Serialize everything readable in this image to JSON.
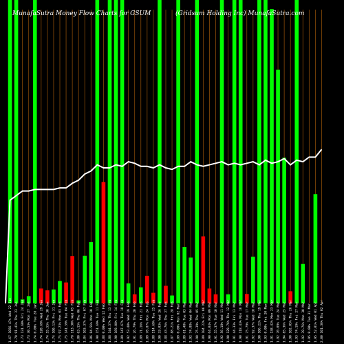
{
  "colors": {
    "background": "#000000",
    "inflow": "#00ff00",
    "outflow": "#ff0000",
    "line": "#ffffff",
    "grid": "#8a4b08",
    "text": "#ffffff"
  },
  "chart_data": {
    "type": "bar",
    "title": "MunafaSutra  Money Flow  Charts for GSUM",
    "subtitle": "(Gridsum Holding Inc) MunafaSutra.com",
    "xlabel": "",
    "ylabel": "",
    "grid": true,
    "categories": [
      "1.67 1056.47% Wed 22 Jan",
      "1.70 91.41% Thu 23 Jan",
      "1.73 131.60% Fri 24 Jan",
      "1.73 30.53% Mon 27 Jan",
      "1.74 0.00% Tue 28 Jan",
      "1.74 120.69% Wed 29 Jan",
      "1.74 55.55% Thu 30 Jan",
      "1.74 100.13% Fri 31 Jan",
      "1.75 97.23% Mon 03 Feb",
      "1.75 141.59% Tue 04 Feb",
      "1.78 113.30% Wed 05 Feb",
      "1.80 63.15% Thu 06 Feb",
      "1.84 103.37% Fri 07 Feb",
      "1.86 84.56% Mon 10 Feb",
      "1.90 151.69% Tue 11 Feb",
      "1.88 0.00% Wed 12 Feb",
      "1.88 144.57% Thu 13 Feb",
      "1.90 169.08% Fri 14 Feb",
      "1.89 147.67% Tue 18 Feb",
      "1.92 53.40% Wed 19 Feb",
      "1.91 26.79% Thu 20 Feb",
      "1.89 71.16% Fri 21 Feb",
      "1.89 78.87% Mon 24 Feb",
      "1.88 114.69% Tue 25 Feb",
      "1.90 33.03% Wed 26 Feb",
      "1.88 43.76% Thu 27 Feb",
      "1.87 88.21% Fri 28 Feb",
      "1.89 0.00% Mon 02 Mar",
      "1.89 61.48% Tue 03 Mar",
      "1.92 74.88% Wed 04 Mar",
      "1.90 75.39% Thu 05 Mar",
      "1.89 104.22% Fri 06 Mar",
      "1.90 64.04% Mon 09 Mar",
      "1.91 55.37% Tue 10 Mar",
      "1.92 56.18% Wed 11 Mar",
      "1.90 129.76% Thu 12 Mar",
      "1.91 44.33% Fri 13 Mar",
      "1.90 118.43% Mon 16 Mar",
      "1.91 75.79% Tue 17 Mar",
      "1.92 92.37% Wed 18 Mar",
      "1.90 106.22% Thu 19 Mar",
      "1.93 0.00% Fri 20 Mar",
      "1.91 138.42% Mon 23 Mar",
      "1.92 70.09% Tue 24 Mar",
      "1.94 85.36% Wed 25 Mar",
      "1.90 102.05% Thu 26 Mar",
      "1.93 74.19% Fri 27 Mar",
      "1.92 39.76% Mon 30 Mar",
      "1.95 0.00% Tue 31 Mar",
      "1.95 52.01% Wed 01 Apr",
      "2.00 101.36% Thu 02 Apr"
    ],
    "bar_height_fraction": [
      1.0,
      1.0,
      0.013,
      0.024,
      1.0,
      0.049,
      0.043,
      0.046,
      0.074,
      0.069,
      0.156,
      0.01,
      0.157,
      0.202,
      1.0,
      0.4,
      1.0,
      1.0,
      1.0,
      0.066,
      0.03,
      0.053,
      0.091,
      0.035,
      1.0,
      0.058,
      0.026,
      1.0,
      0.186,
      0.151,
      1.0,
      0.221,
      0.049,
      0.03,
      1.0,
      0.03,
      1.0,
      1.0,
      0.031,
      0.154,
      1.0,
      1.0,
      0.97,
      0.77,
      0.48,
      0.04,
      1.0,
      0.13,
      0.0,
      0.36,
      0.0
    ],
    "bar_direction": [
      "in",
      "in",
      "in",
      "in",
      "in",
      "out",
      "out",
      "in",
      "in",
      "out",
      "out",
      "in",
      "in",
      "in",
      "in",
      "out",
      "in",
      "in",
      "in",
      "in",
      "out",
      "in",
      "out",
      "out",
      "in",
      "out",
      "in",
      "in",
      "in",
      "in",
      "in",
      "out",
      "out",
      "out",
      "in",
      "in",
      "in",
      "in",
      "out",
      "in",
      "in",
      "in",
      "in",
      "in",
      "in",
      "out",
      "in",
      "in",
      "in",
      "in",
      "in"
    ],
    "price_line": [
      1.67,
      1.7,
      1.73,
      1.73,
      1.74,
      1.74,
      1.74,
      1.74,
      1.75,
      1.75,
      1.78,
      1.8,
      1.84,
      1.86,
      1.9,
      1.88,
      1.88,
      1.9,
      1.89,
      1.92,
      1.91,
      1.89,
      1.89,
      1.88,
      1.9,
      1.88,
      1.87,
      1.89,
      1.89,
      1.92,
      1.9,
      1.89,
      1.9,
      1.91,
      1.92,
      1.9,
      1.91,
      1.9,
      1.91,
      1.92,
      1.9,
      1.93,
      1.91,
      1.92,
      1.94,
      1.9,
      1.93,
      1.92,
      1.95,
      1.95,
      2.0
    ],
    "ylim": [
      0,
      1
    ]
  }
}
